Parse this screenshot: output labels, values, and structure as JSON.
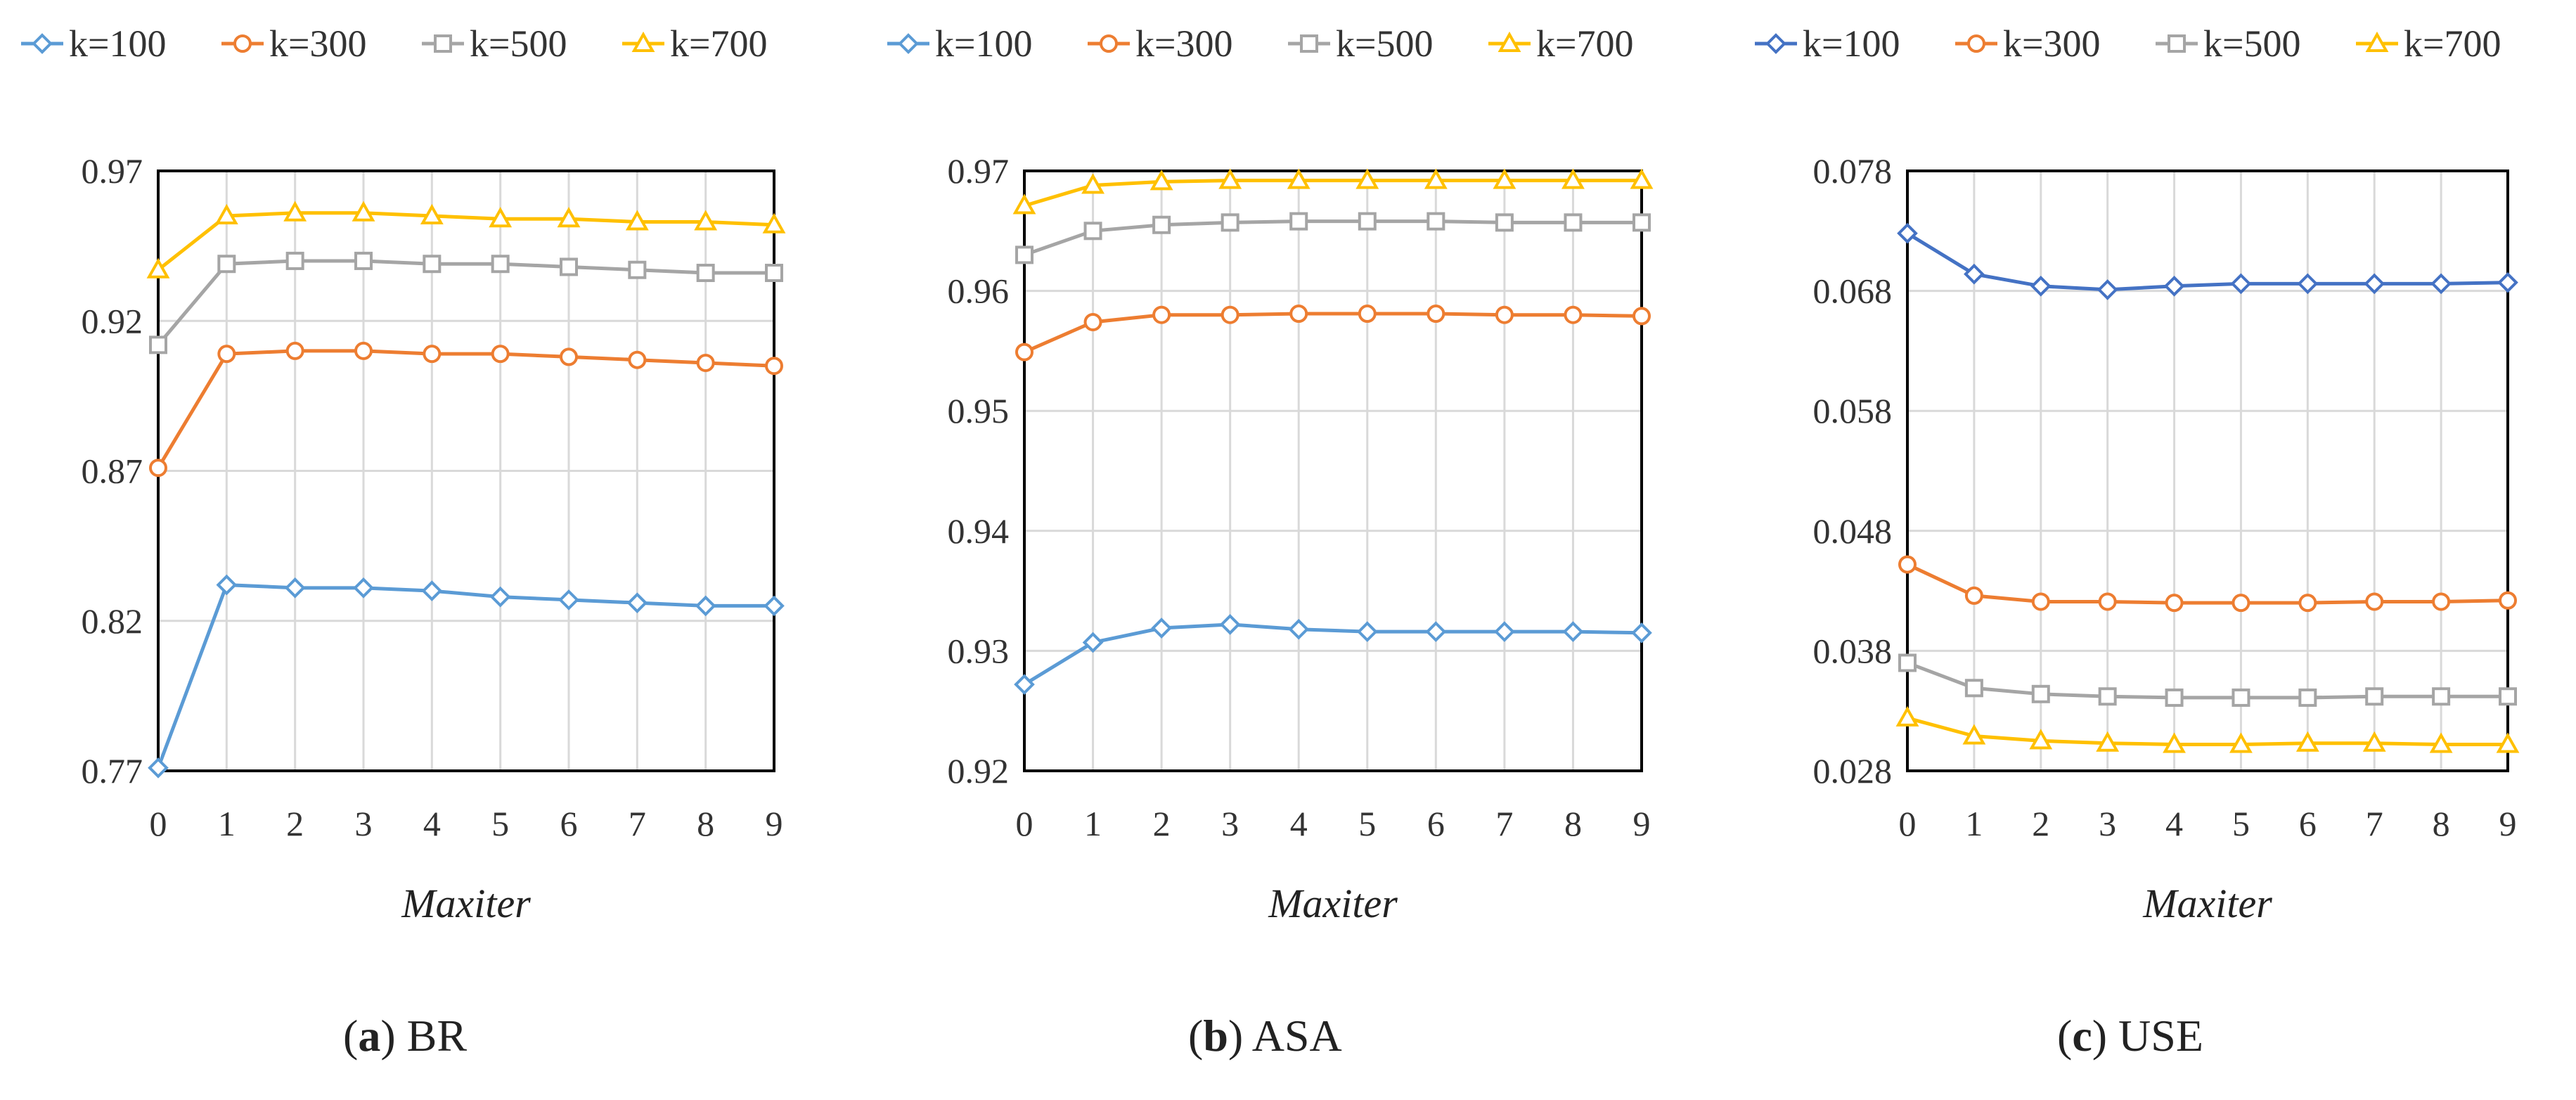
{
  "colors": {
    "k100": "#5b9bd5",
    "k300": "#ed7d31",
    "k500": "#a5a5a5",
    "k700": "#ffc000",
    "k100_dark": "#4472c4"
  },
  "chart_data": [
    {
      "type": "line",
      "caption_letter": "a",
      "caption_text": "BR",
      "xlabel": "Maxiter",
      "x": [
        0,
        1,
        2,
        3,
        4,
        5,
        6,
        7,
        8,
        9
      ],
      "ylim": [
        0.77,
        0.97
      ],
      "yticks": [
        0.77,
        0.82,
        0.87,
        0.92,
        0.97
      ],
      "ytick_labels": [
        "0.77",
        "0.82",
        "0.87",
        "0.92",
        "0.97"
      ],
      "xtick_labels": [
        "0",
        "1",
        "2",
        "3",
        "4",
        "5",
        "6",
        "7",
        "8",
        "9"
      ],
      "legend": [
        "k=100",
        "k=300",
        "k=500",
        "k=700"
      ],
      "series": [
        {
          "name": "k=100",
          "marker": "diamond",
          "color": "#5b9bd5",
          "values": [
            0.771,
            0.832,
            0.831,
            0.831,
            0.83,
            0.828,
            0.827,
            0.826,
            0.825,
            0.825
          ]
        },
        {
          "name": "k=300",
          "marker": "circle",
          "color": "#ed7d31",
          "values": [
            0.871,
            0.909,
            0.91,
            0.91,
            0.909,
            0.909,
            0.908,
            0.907,
            0.906,
            0.905
          ]
        },
        {
          "name": "k=500",
          "marker": "square",
          "color": "#a5a5a5",
          "values": [
            0.912,
            0.939,
            0.94,
            0.94,
            0.939,
            0.939,
            0.938,
            0.937,
            0.936,
            0.936
          ]
        },
        {
          "name": "k=700",
          "marker": "triangle",
          "color": "#ffc000",
          "values": [
            0.937,
            0.955,
            0.956,
            0.956,
            0.955,
            0.954,
            0.954,
            0.953,
            0.953,
            0.952
          ]
        }
      ]
    },
    {
      "type": "line",
      "caption_letter": "b",
      "caption_text": "ASA",
      "xlabel": "Maxiter",
      "x": [
        0,
        1,
        2,
        3,
        4,
        5,
        6,
        7,
        8,
        9
      ],
      "ylim": [
        0.92,
        0.97
      ],
      "yticks": [
        0.92,
        0.93,
        0.94,
        0.95,
        0.96,
        0.97
      ],
      "ytick_labels": [
        "0.92",
        "0.93",
        "0.94",
        "0.95",
        "0.96",
        "0.97"
      ],
      "xtick_labels": [
        "0",
        "1",
        "2",
        "3",
        "4",
        "5",
        "6",
        "7",
        "8",
        "9"
      ],
      "legend": [
        "k=100",
        "k=300",
        "k=500",
        "k=700"
      ],
      "series": [
        {
          "name": "k=100",
          "marker": "diamond",
          "color": "#5b9bd5",
          "values": [
            0.9272,
            0.9307,
            0.9319,
            0.9322,
            0.9318,
            0.9316,
            0.9316,
            0.9316,
            0.9316,
            0.9315
          ]
        },
        {
          "name": "k=300",
          "marker": "circle",
          "color": "#ed7d31",
          "values": [
            0.9549,
            0.9574,
            0.958,
            0.958,
            0.9581,
            0.9581,
            0.9581,
            0.958,
            0.958,
            0.9579
          ]
        },
        {
          "name": "k=500",
          "marker": "square",
          "color": "#a5a5a5",
          "values": [
            0.963,
            0.965,
            0.9655,
            0.9657,
            0.9658,
            0.9658,
            0.9658,
            0.9657,
            0.9657,
            0.9657
          ]
        },
        {
          "name": "k=700",
          "marker": "triangle",
          "color": "#ffc000",
          "values": [
            0.9671,
            0.9688,
            0.9691,
            0.9692,
            0.9692,
            0.9692,
            0.9692,
            0.9692,
            0.9692,
            0.9692
          ]
        }
      ]
    },
    {
      "type": "line",
      "caption_letter": "c",
      "caption_text": "USE",
      "xlabel": "Maxiter",
      "x": [
        0,
        1,
        2,
        3,
        4,
        5,
        6,
        7,
        8,
        9
      ],
      "ylim": [
        0.028,
        0.078
      ],
      "yticks": [
        0.028,
        0.038,
        0.048,
        0.058,
        0.068,
        0.078
      ],
      "ytick_labels": [
        "0.028",
        "0.038",
        "0.048",
        "0.058",
        "0.068",
        "0.078"
      ],
      "xtick_labels": [
        "0",
        "1",
        "2",
        "3",
        "4",
        "5",
        "6",
        "7",
        "8",
        "9"
      ],
      "legend": [
        "k=100",
        "k=300",
        "k=500",
        "k=700"
      ],
      "series": [
        {
          "name": "k=100",
          "marker": "diamond",
          "color": "#4472c4",
          "values": [
            0.0728,
            0.0694,
            0.0684,
            0.0681,
            0.0684,
            0.0686,
            0.0686,
            0.0686,
            0.0686,
            0.0687
          ]
        },
        {
          "name": "k=300",
          "marker": "circle",
          "color": "#ed7d31",
          "values": [
            0.0452,
            0.0426,
            0.0421,
            0.0421,
            0.042,
            0.042,
            0.042,
            0.0421,
            0.0421,
            0.0422
          ]
        },
        {
          "name": "k=500",
          "marker": "square",
          "color": "#a5a5a5",
          "values": [
            0.037,
            0.0349,
            0.0344,
            0.0342,
            0.0341,
            0.0341,
            0.0341,
            0.0342,
            0.0342,
            0.0342
          ]
        },
        {
          "name": "k=700",
          "marker": "triangle",
          "color": "#ffc000",
          "values": [
            0.0324,
            0.0309,
            0.0305,
            0.0303,
            0.0302,
            0.0302,
            0.0303,
            0.0303,
            0.0302,
            0.0302
          ]
        }
      ]
    }
  ]
}
